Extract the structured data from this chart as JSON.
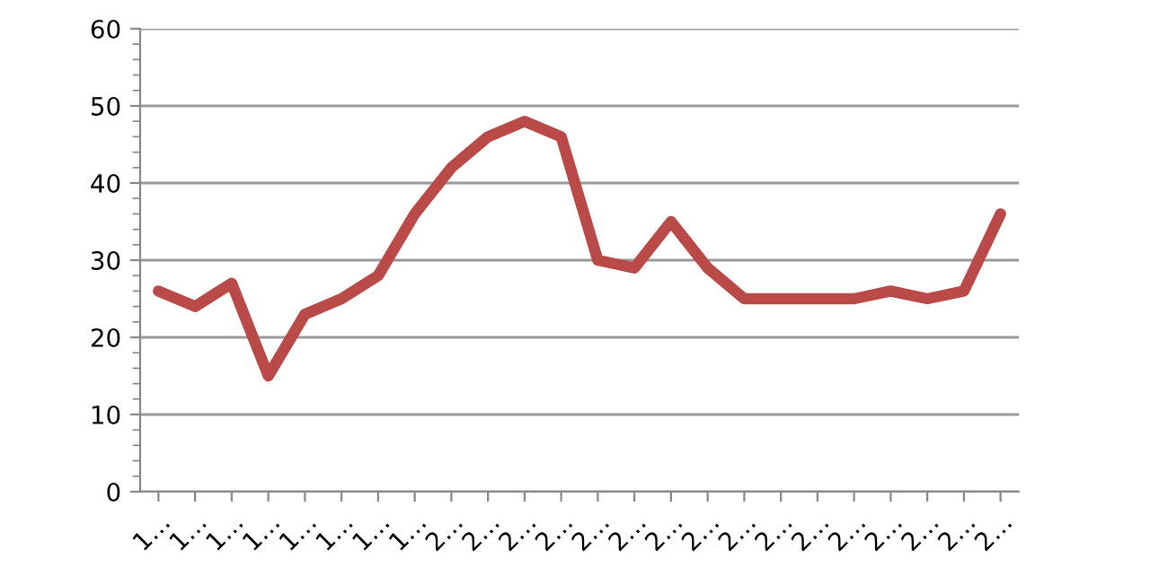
{
  "chart_data": {
    "type": "line",
    "categories": [
      "1…",
      "1…",
      "1…",
      "1…",
      "1…",
      "1…",
      "1…",
      "1…",
      "2…",
      "2…",
      "2…",
      "2…",
      "2…",
      "2…",
      "2…",
      "2…",
      "2…",
      "2…",
      "2…",
      "2…",
      "2…",
      "2…",
      "2…",
      "2…"
    ],
    "series": [
      {
        "color": "#b94a48",
        "values": [
          26,
          24,
          27,
          15,
          23,
          25,
          28,
          36,
          42,
          46,
          48,
          46,
          30,
          29,
          35,
          29,
          25,
          25,
          25,
          25,
          26,
          25,
          26,
          36
        ]
      }
    ],
    "ylim": [
      0,
      60
    ],
    "yticks": [
      0,
      10,
      20,
      30,
      40,
      50,
      60
    ],
    "grid": "y",
    "marker": "none",
    "line_style": "solid"
  }
}
